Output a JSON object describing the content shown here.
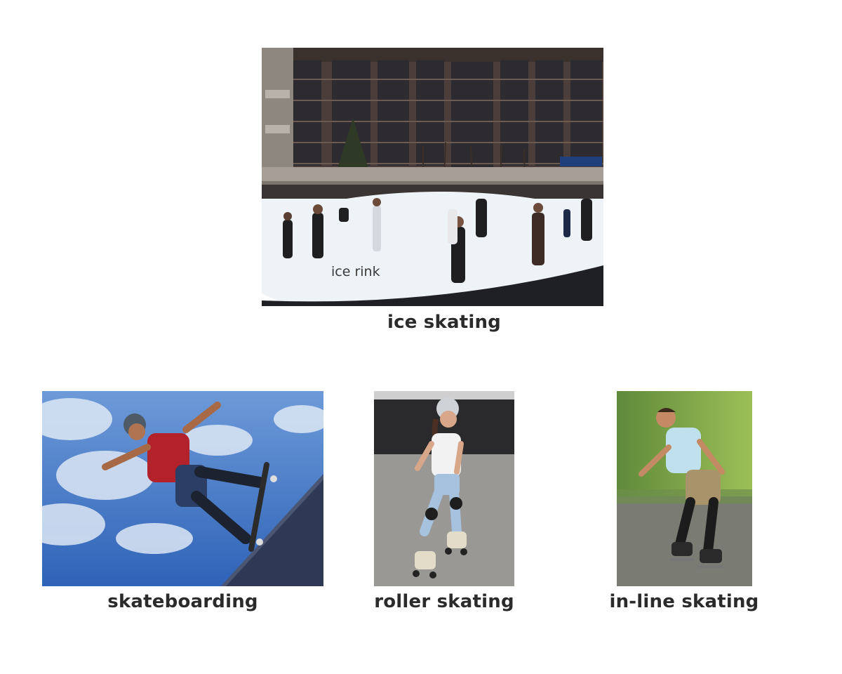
{
  "images": {
    "ice_skating": {
      "caption": "ice skating",
      "inner_label": "ice rink"
    },
    "skateboarding": {
      "caption": "skateboarding"
    },
    "roller_skating": {
      "caption": "roller skating"
    },
    "inline_skating": {
      "caption": "in-line skating"
    }
  },
  "colors": {
    "caption_text": "#2b2b2b",
    "sky_blue": "#4a7fc7",
    "ice_white": "#eef3f7",
    "building_brown": "#5a4a44"
  }
}
